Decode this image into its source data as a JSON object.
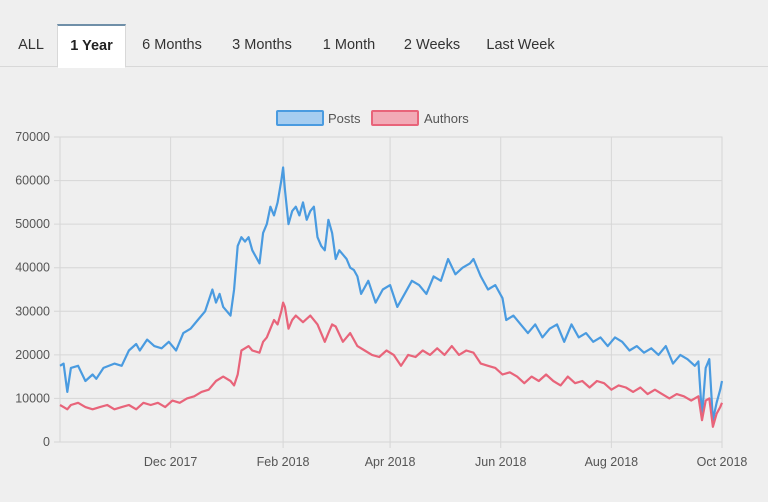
{
  "tabs": [
    {
      "label": "ALL",
      "active": false
    },
    {
      "label": "1 Year",
      "active": true
    },
    {
      "label": "6 Months",
      "active": false
    },
    {
      "label": "3 Months",
      "active": false
    },
    {
      "label": "1 Month",
      "active": false
    },
    {
      "label": "2 Weeks",
      "active": false
    },
    {
      "label": "Last Week",
      "active": false
    }
  ],
  "colors": {
    "posts_line": "#4a9be0",
    "posts_fill": "#a6cdf0",
    "authors_line": "#e8647a",
    "authors_fill": "#f2aab6",
    "grid": "#d6d6d6"
  },
  "chart_data": {
    "type": "line",
    "title": "",
    "xlabel": "",
    "ylabel": "",
    "ylim": [
      0,
      70000
    ],
    "yticks": [
      "0",
      "10000",
      "20000",
      "30000",
      "40000",
      "50000",
      "60000",
      "70000"
    ],
    "xticks": [
      "Dec 2017",
      "Feb 2018",
      "Apr 2018",
      "Jun 2018",
      "Aug 2018",
      "Oct 2018"
    ],
    "x_range_days": [
      0,
      365
    ],
    "xtick_days": [
      61,
      123,
      182,
      243,
      304,
      365
    ],
    "legend_position": "top-center",
    "series": [
      {
        "name": "Posts",
        "x": [
          0,
          2,
          4,
          6,
          10,
          14,
          18,
          20,
          24,
          30,
          34,
          38,
          42,
          44,
          48,
          52,
          56,
          60,
          64,
          68,
          72,
          76,
          80,
          84,
          86,
          88,
          90,
          94,
          96,
          98,
          100,
          102,
          104,
          106,
          110,
          112,
          114,
          116,
          118,
          120,
          122,
          123,
          124,
          126,
          128,
          130,
          132,
          134,
          136,
          138,
          140,
          142,
          144,
          146,
          148,
          150,
          152,
          154,
          156,
          158,
          160,
          162,
          164,
          166,
          170,
          174,
          178,
          182,
          186,
          190,
          194,
          198,
          202,
          206,
          210,
          214,
          218,
          222,
          226,
          228,
          232,
          236,
          240,
          244,
          246,
          250,
          254,
          258,
          262,
          266,
          270,
          274,
          278,
          282,
          286,
          290,
          294,
          298,
          302,
          306,
          310,
          314,
          318,
          322,
          326,
          330,
          334,
          338,
          342,
          346,
          350,
          352,
          354,
          356,
          358,
          360,
          362,
          364,
          365
        ],
        "values": [
          17500,
          18000,
          11500,
          17000,
          17500,
          14000,
          15500,
          14500,
          17000,
          18000,
          17500,
          21000,
          22500,
          21000,
          23500,
          22000,
          21500,
          23000,
          21000,
          25000,
          26000,
          28000,
          30000,
          35000,
          32000,
          34000,
          31000,
          29000,
          35000,
          45000,
          47000,
          46000,
          47000,
          44000,
          41000,
          48000,
          50000,
          54000,
          52000,
          55000,
          60000,
          63000,
          58000,
          50000,
          53000,
          54000,
          52000,
          55000,
          51000,
          53000,
          54000,
          47000,
          45000,
          44000,
          51000,
          48000,
          42000,
          44000,
          43000,
          42000,
          40000,
          39500,
          38000,
          34000,
          37000,
          32000,
          35000,
          36000,
          31000,
          34000,
          37000,
          36000,
          34000,
          38000,
          37000,
          42000,
          38500,
          40000,
          41000,
          42000,
          38000,
          35000,
          36000,
          33000,
          28000,
          29000,
          27000,
          25000,
          27000,
          24000,
          26000,
          27000,
          23000,
          27000,
          24000,
          25000,
          23000,
          24000,
          22000,
          24000,
          23000,
          21000,
          22000,
          20500,
          21500,
          20000,
          22000,
          18000,
          20000,
          19000,
          17500,
          18500,
          6000,
          17000,
          19000,
          5000,
          9000,
          12000,
          14000
        ]
      },
      {
        "name": "Authors",
        "x": [
          0,
          2,
          4,
          6,
          10,
          14,
          18,
          22,
          26,
          30,
          34,
          38,
          42,
          46,
          50,
          54,
          58,
          62,
          66,
          70,
          74,
          78,
          82,
          86,
          90,
          94,
          96,
          98,
          100,
          102,
          104,
          106,
          110,
          112,
          114,
          116,
          118,
          120,
          122,
          123,
          124,
          126,
          128,
          130,
          134,
          138,
          142,
          146,
          148,
          150,
          152,
          156,
          160,
          164,
          168,
          172,
          176,
          180,
          184,
          188,
          192,
          196,
          200,
          204,
          208,
          212,
          216,
          220,
          224,
          228,
          232,
          236,
          240,
          244,
          248,
          252,
          256,
          260,
          264,
          268,
          272,
          276,
          280,
          284,
          288,
          292,
          296,
          300,
          304,
          308,
          312,
          316,
          320,
          324,
          328,
          332,
          336,
          340,
          344,
          348,
          350,
          352,
          354,
          356,
          358,
          360,
          362,
          364,
          365
        ],
        "values": [
          8500,
          8000,
          7500,
          8500,
          9000,
          8000,
          7500,
          8000,
          8500,
          7500,
          8000,
          8500,
          7500,
          9000,
          8500,
          9000,
          8000,
          9500,
          9000,
          10000,
          10500,
          11500,
          12000,
          14000,
          15000,
          14000,
          13000,
          15500,
          21000,
          21500,
          22000,
          21000,
          20500,
          23000,
          24000,
          26000,
          28000,
          27000,
          30000,
          32000,
          31000,
          26000,
          28000,
          29000,
          27500,
          29000,
          27000,
          23000,
          25000,
          27000,
          26500,
          23000,
          25000,
          22000,
          21000,
          20000,
          19500,
          21000,
          20000,
          17500,
          20000,
          19500,
          21000,
          20000,
          21500,
          20000,
          22000,
          20000,
          21000,
          20500,
          18000,
          17500,
          17000,
          15500,
          16000,
          15000,
          13500,
          15000,
          14000,
          15500,
          14000,
          13000,
          15000,
          13500,
          14000,
          12500,
          14000,
          13500,
          12000,
          13000,
          12500,
          11500,
          12500,
          11000,
          12000,
          11000,
          10000,
          11000,
          10500,
          9500,
          10000,
          10500,
          5000,
          9500,
          10000,
          3500,
          6500,
          8000,
          9000
        ]
      }
    ]
  }
}
